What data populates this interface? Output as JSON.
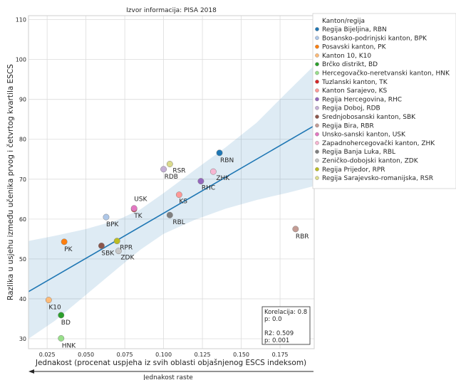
{
  "chart_data": {
    "type": "scatter",
    "title": "Izvor informacija: PISA 2018",
    "xlabel": "Jednakost (procenat uspjeha iz svih oblasti objašnjenog ESCS indeksom)",
    "ylabel": "Razlika u usjehu između učenika prvog i četvrtog kvartila ESCS",
    "arrow_label": "Jednakost raste",
    "xlim": [
      0.013,
      0.197
    ],
    "ylim": [
      27.5,
      111
    ],
    "xticks": [
      "0.025",
      "0.050",
      "0.075",
      "0.100",
      "0.125",
      "0.150",
      "0.175"
    ],
    "xtick_values": [
      0.025,
      0.05,
      0.075,
      0.1,
      0.125,
      0.15,
      0.175
    ],
    "yticks": [
      "30",
      "40",
      "50",
      "60",
      "70",
      "80",
      "90",
      "100",
      "110"
    ],
    "ytick_values": [
      30,
      40,
      50,
      60,
      70,
      80,
      90,
      100,
      110
    ],
    "grid": true,
    "legend_title": "Kanton/regija",
    "legend_position": "top-right",
    "regression": {
      "x0": 0.013,
      "y0": 41.8,
      "x1": 0.197,
      "y1": 83.4,
      "color": "#1f77b4",
      "band_color": "#1f77b4"
    },
    "stats": [
      "Korelacija: 0.8",
      "p: 0.0",
      "",
      "R2: 0.509",
      "p: 0.001"
    ],
    "points": [
      {
        "label": "RBN",
        "name": "Regija Bijeljina, RBN",
        "x": 0.136,
        "y": 76.6,
        "color": "#1f77b4",
        "dx": 1,
        "dy": 13
      },
      {
        "label": "BPK",
        "name": "Bosansko-podrinjski kanton, BPK",
        "x": 0.063,
        "y": 60.5,
        "color": "#aec7e8",
        "dx": 0,
        "dy": 13
      },
      {
        "label": "PK",
        "name": "Posavski kanton, PK",
        "x": 0.036,
        "y": 54.3,
        "color": "#ff7f0e",
        "dx": 0,
        "dy": 13
      },
      {
        "label": "K10",
        "name": "Kanton 10, K10",
        "x": 0.026,
        "y": 39.7,
        "color": "#ffbb78",
        "dx": 0,
        "dy": 13
      },
      {
        "label": "BD",
        "name": "Brčko distrikt, BD",
        "x": 0.034,
        "y": 35.9,
        "color": "#2ca02c",
        "dx": 0,
        "dy": 13
      },
      {
        "label": "HNK",
        "name": "Hercegovačko-neretvanski kanton, HNK",
        "x": 0.034,
        "y": 30.1,
        "color": "#98df8a",
        "dx": 1,
        "dy": 13
      },
      {
        "label": "TK",
        "name": "Tuzlanski kanton, TK",
        "x": 0.081,
        "y": 62.5,
        "color": "#d62728",
        "dx": 0,
        "dy": 12
      },
      {
        "label": "KS",
        "name": "Kanton Sarajevo, KS",
        "x": 0.11,
        "y": 66.1,
        "color": "#ff9896",
        "dx": 0,
        "dy": 12
      },
      {
        "label": "RHC",
        "name": "Regija Hercegovina, RHC",
        "x": 0.124,
        "y": 69.5,
        "color": "#9467bd",
        "dx": 1,
        "dy": 12
      },
      {
        "label": "RDB",
        "name": "Regija Doboj, RDB",
        "x": 0.1,
        "y": 72.5,
        "color": "#c5b0d5",
        "dx": 1,
        "dy": 13
      },
      {
        "label": "SBK",
        "name": "Srednjobosanski kanton, SBK",
        "x": 0.06,
        "y": 53.3,
        "color": "#8c564b",
        "dx": 0,
        "dy": 13
      },
      {
        "label": "RBR",
        "name": "Regija Bira, RBR",
        "x": 0.185,
        "y": 57.5,
        "color": "#c49c94",
        "dx": 0,
        "dy": 13
      },
      {
        "label": "USK",
        "name": "Unsko-sanski kanton, USK",
        "x": 0.081,
        "y": 62.7,
        "color": "#e377c2",
        "dx": 0,
        "dy": -10
      },
      {
        "label": "ZHK",
        "name": "Zapadnohercegovački kanton, ZHK",
        "x": 0.132,
        "y": 71.9,
        "color": "#f7b6d2",
        "dx": 4,
        "dy": 12
      },
      {
        "label": "RBL",
        "name": "Regija Banja Luka, RBL",
        "x": 0.104,
        "y": 61.0,
        "color": "#7f7f7f",
        "dx": 4,
        "dy": 13
      },
      {
        "label": "ZDK",
        "name": "Zeničko-dobojski kanton, ZDK",
        "x": 0.071,
        "y": 52.0,
        "color": "#c7c7c7",
        "dx": 3,
        "dy": 12
      },
      {
        "label": "RPR",
        "name": "Regija Prijedor, RPR",
        "x": 0.07,
        "y": 54.5,
        "color": "#bcbd22",
        "dx": 4,
        "dy": 12
      },
      {
        "label": "RSR",
        "name": "Regija Sarajevsko-romanijska, RSR",
        "x": 0.104,
        "y": 73.8,
        "color": "#dbdb8d",
        "dx": 4,
        "dy": 12
      }
    ]
  }
}
